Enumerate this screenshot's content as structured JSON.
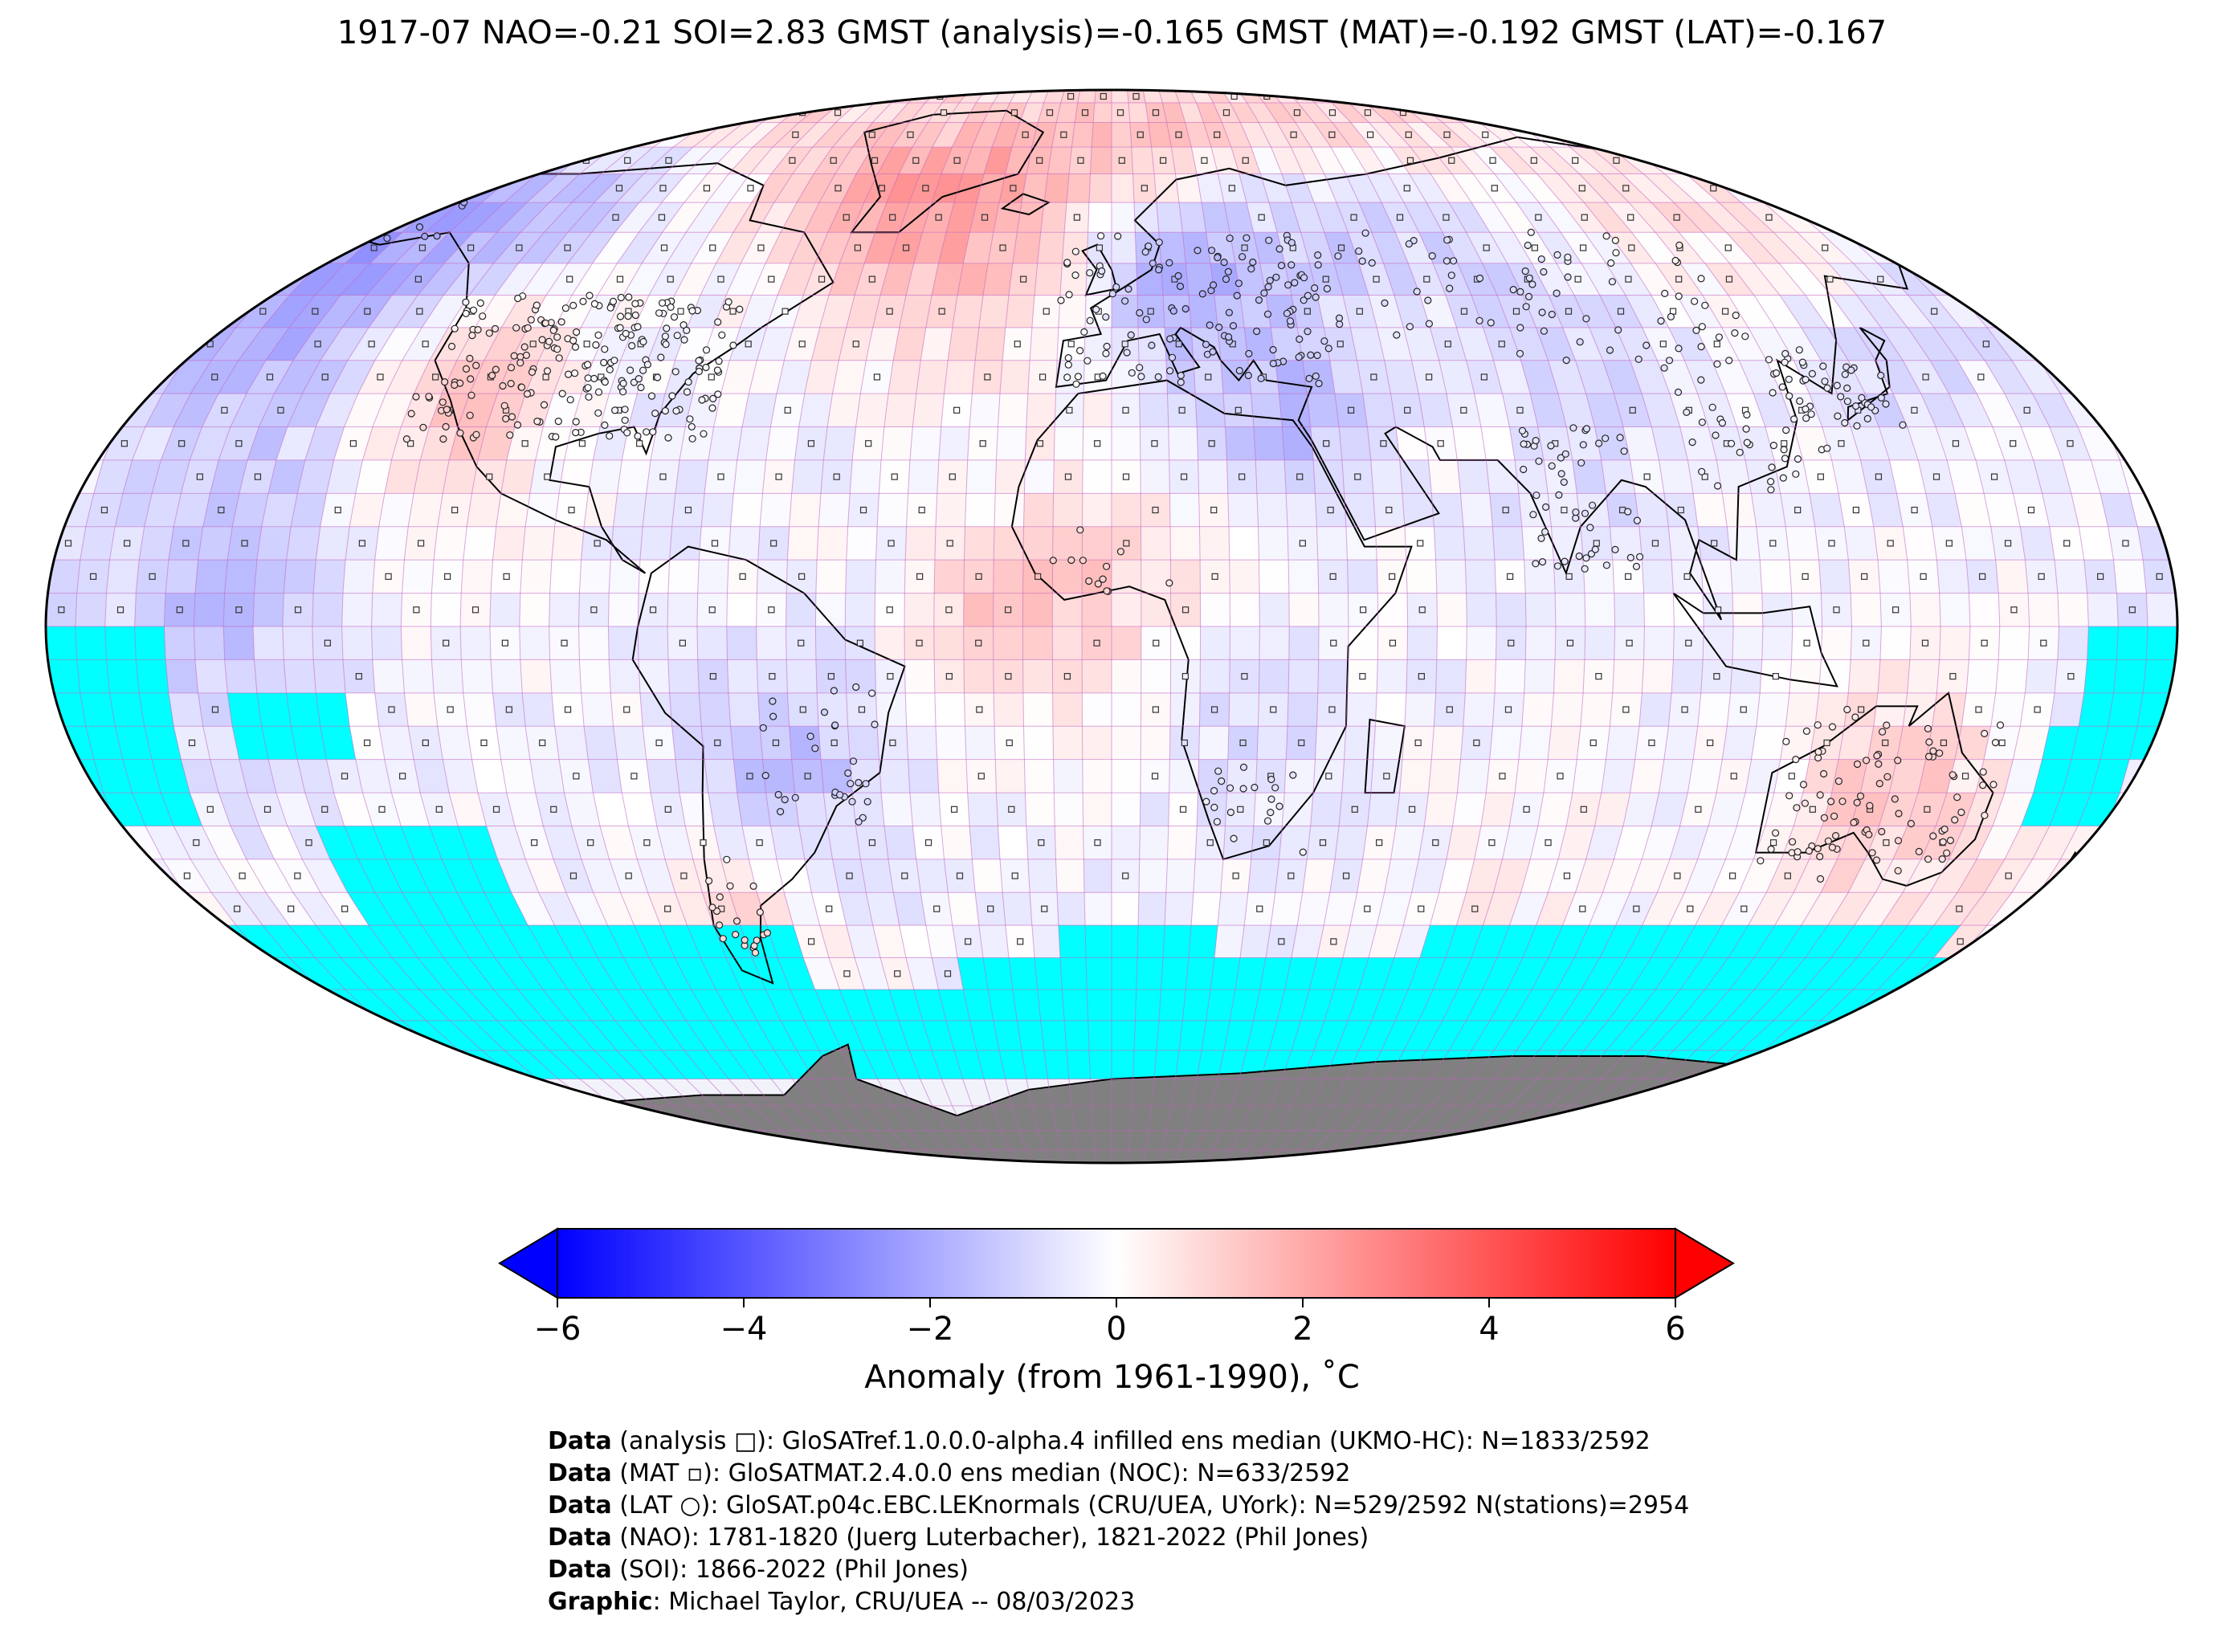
{
  "title": "1917-07 NAO=-0.21 SOI=2.83 GMST (analysis)=-0.165 GMST (MAT)=-0.192 GMST (LAT)=-0.167",
  "map": {
    "projection": "Robinson",
    "colors": {
      "ocean_missing": "#00ffff",
      "antarctica": "#808080",
      "gridline": "#c060c0",
      "coastline": "#000000",
      "cold": "#0000ff",
      "neutral": "#ffffff",
      "warm": "#ff0000"
    }
  },
  "colorbar": {
    "label": "Anomaly (from 1961-1990), ˚C",
    "ticks": [
      "−6",
      "−4",
      "−2",
      "0",
      "2",
      "4",
      "6"
    ],
    "range": [
      -6,
      6
    ],
    "extend": "both"
  },
  "credits": [
    {
      "bold": "Data",
      "text": " (analysis □): GloSATref.1.0.0.0-alpha.4 infilled ens median (UKMO-HC): N=1833/2592"
    },
    {
      "bold": "Data",
      "text": " (MAT ▫): GloSATMAT.2.4.0.0 ens median (NOC): N=633/2592"
    },
    {
      "bold": "Data",
      "text": " (LAT ○): GloSAT.p04c.EBC.LEKnormals (CRU/UEA, UYork): N=529/2592 N(stations)=2954"
    },
    {
      "bold": "Data",
      "text": " (NAO): 1781-1820 (Juerg Luterbacher), 1821-2022 (Phil Jones)"
    },
    {
      "bold": "Data",
      "text": " (SOI): 1866-2022 (Phil Jones)"
    },
    {
      "bold": "Graphic",
      "text": ": Michael Taylor, CRU/UEA -- 08/03/2023"
    }
  ]
}
